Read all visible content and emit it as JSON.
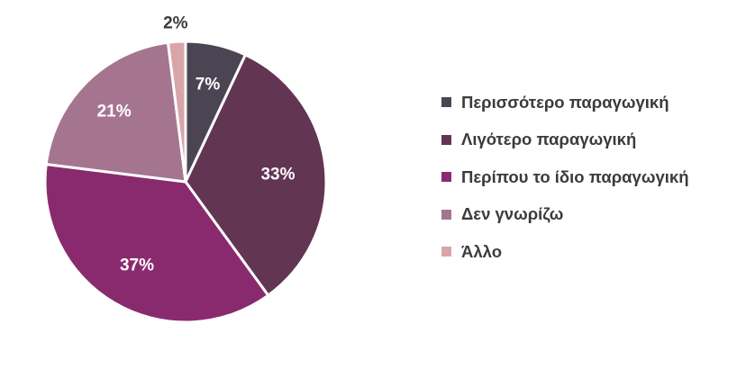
{
  "chart_data": {
    "type": "pie",
    "categories": [
      "Περισσότερο παραγωγική",
      "Λιγότερο παραγωγική",
      "Περίπου το ίδιο παραγωγική",
      "Δεν γνωρίζω",
      "Άλλο"
    ],
    "values": [
      7,
      33,
      37,
      21,
      2
    ],
    "labels": [
      "7%",
      "33%",
      "37%",
      "21%",
      "2%"
    ],
    "colors": [
      "#4b4553",
      "#623552",
      "#8a2a6e",
      "#a57590",
      "#d8a5aa"
    ],
    "label_colors": [
      "#ffffff",
      "#ffffff",
      "#ffffff",
      "#ffffff",
      "#3b3b3b"
    ],
    "title": "",
    "legend_position": "right",
    "start_angle_deg": 0,
    "direction": "clockwise"
  }
}
